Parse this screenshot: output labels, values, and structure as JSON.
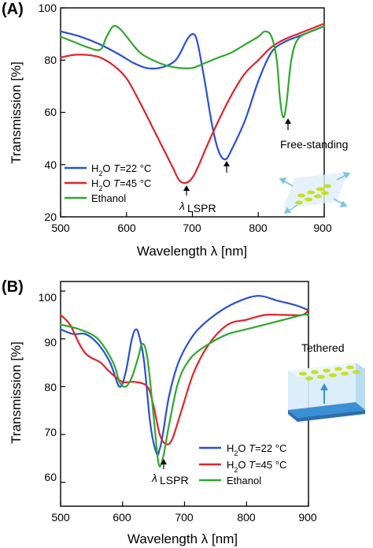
{
  "colors": {
    "blue": "#2a4fd6",
    "red": "#e0242a",
    "green": "#2ea82e"
  },
  "chart_data": [
    {
      "type": "line",
      "panel_label": "(A)",
      "xlabel": "Wavelength λ [nm]",
      "ylabel": "Transmission [%]",
      "xlim": [
        500,
        900
      ],
      "ylim": [
        20,
        100
      ],
      "xticks": [
        "500",
        "600",
        "700",
        "800",
        "900"
      ],
      "yticks": [
        "20",
        "40",
        "60",
        "80",
        "100"
      ],
      "legend": {
        "position": "bottom-left"
      },
      "annotations": {
        "lambda": "λ",
        "lambda_sub": "LSPR",
        "free_standing": "Free-standing"
      },
      "series": [
        {
          "name": "H2O T=22 °C",
          "name_parts": [
            "H",
            "2",
            "O ",
            "T",
            "=22 °C"
          ],
          "color": "#2a4fd6",
          "x": [
            500,
            530,
            560,
            590,
            610,
            630,
            650,
            670,
            680,
            690,
            695,
            700,
            705,
            710,
            720,
            730,
            740,
            750,
            760,
            780,
            800,
            820,
            840,
            860,
            880,
            900
          ],
          "y": [
            91,
            89,
            86,
            82,
            79,
            77,
            77,
            79,
            82,
            87,
            89,
            90,
            89,
            84,
            70,
            55,
            45,
            42,
            46,
            57,
            72,
            83,
            87,
            89,
            91,
            93
          ]
        },
        {
          "name": "H2O T=45 °C",
          "name_parts": [
            "H",
            "2",
            "O ",
            "T",
            "=45 °C"
          ],
          "color": "#e0242a",
          "x": [
            500,
            520,
            540,
            560,
            580,
            600,
            620,
            640,
            660,
            670,
            680,
            690,
            700,
            710,
            720,
            740,
            760,
            780,
            800,
            820,
            840,
            860,
            880,
            900
          ],
          "y": [
            81,
            82,
            82,
            81,
            78,
            73,
            64,
            54,
            44,
            39,
            34,
            33,
            35,
            40,
            46,
            57,
            67,
            75,
            80,
            85,
            88,
            90,
            92,
            94
          ]
        },
        {
          "name": "Ethanol",
          "name_parts": [
            "Ethanol"
          ],
          "color": "#2ea82e",
          "x": [
            500,
            520,
            540,
            560,
            570,
            580,
            590,
            600,
            620,
            640,
            660,
            680,
            700,
            720,
            740,
            760,
            780,
            800,
            810,
            820,
            828,
            833,
            838,
            843,
            850,
            860,
            880,
            900
          ],
          "y": [
            89,
            87,
            85,
            84,
            89,
            93,
            92,
            89,
            83,
            80,
            78,
            77,
            77,
            79,
            81,
            83,
            86,
            89,
            91,
            89,
            80,
            65,
            58,
            64,
            80,
            88,
            91,
            93
          ]
        }
      ]
    },
    {
      "type": "line",
      "panel_label": "(B)",
      "xlabel": "Wavelength λ [nm]",
      "ylabel": "Transmission [%]",
      "xlim": [
        500,
        900
      ],
      "ylim": [
        55,
        102
      ],
      "xticks": [
        "500",
        "600",
        "700",
        "800",
        "900"
      ],
      "yticks": [
        "60",
        "70",
        "80",
        "90",
        "100"
      ],
      "legend": {
        "position": "bottom-right"
      },
      "annotations": {
        "lambda": "λ",
        "lambda_sub": "LSPR",
        "tethered": "Tethered"
      },
      "series": [
        {
          "name": "H2O T=22 °C",
          "name_parts": [
            "H",
            "2",
            "O ",
            "T",
            "=22 °C"
          ],
          "color": "#2a4fd6",
          "x": [
            500,
            520,
            540,
            560,
            580,
            595,
            605,
            615,
            622,
            628,
            635,
            645,
            655,
            660,
            665,
            675,
            690,
            710,
            730,
            760,
            790,
            820,
            850,
            880,
            900
          ],
          "y": [
            92,
            91,
            91,
            89,
            85,
            80,
            83,
            90,
            92,
            90,
            85,
            72,
            66,
            67,
            70,
            78,
            85,
            90,
            93,
            96,
            98,
            99,
            98,
            97,
            96
          ]
        },
        {
          "name": "H2O T=45 °C",
          "name_parts": [
            "H",
            "2",
            "O ",
            "T",
            "=45 °C"
          ],
          "color": "#e0242a",
          "x": [
            500,
            515,
            530,
            540,
            550,
            565,
            580,
            600,
            620,
            640,
            650,
            660,
            670,
            680,
            695,
            715,
            740,
            770,
            800,
            830,
            860,
            890,
            900
          ],
          "y": [
            95,
            93,
            89,
            87,
            86,
            85,
            83,
            81,
            81,
            80,
            76,
            70,
            68,
            69,
            75,
            83,
            89,
            93,
            94,
            95,
            95,
            95,
            96
          ]
        },
        {
          "name": "Ethanol",
          "name_parts": [
            "Ethanol"
          ],
          "color": "#2ea82e",
          "x": [
            500,
            530,
            560,
            585,
            595,
            605,
            615,
            625,
            632,
            640,
            650,
            658,
            665,
            675,
            690,
            710,
            740,
            770,
            800,
            830,
            860,
            890,
            900
          ],
          "y": [
            93,
            92,
            90,
            85,
            81,
            80,
            82,
            86,
            89,
            86,
            74,
            64,
            65,
            72,
            81,
            86,
            89,
            91,
            92,
            93,
            94,
            95,
            95
          ]
        }
      ]
    }
  ]
}
